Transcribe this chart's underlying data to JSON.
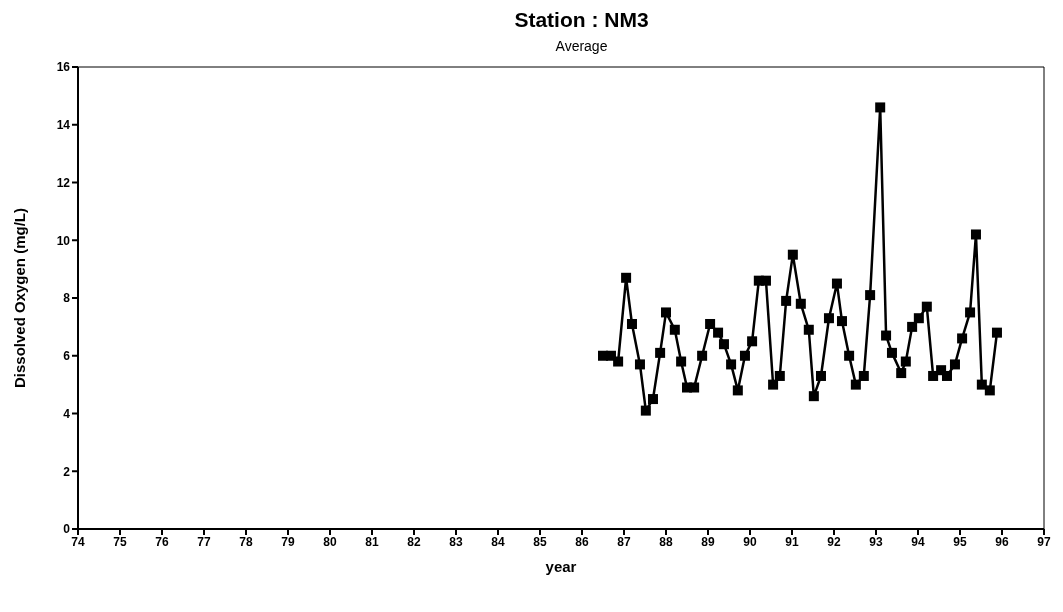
{
  "chart_data": {
    "type": "line",
    "title": "Station : NM3",
    "subtitle": "Average",
    "xlabel": "year",
    "ylabel": "Dissolved Oxygen (mg/L)",
    "x": [
      86.5,
      86.69,
      86.86,
      87.05,
      87.19,
      87.38,
      87.52,
      87.69,
      87.86,
      88.0,
      88.21,
      88.36,
      88.5,
      88.67,
      88.86,
      89.05,
      89.24,
      89.38,
      89.55,
      89.71,
      89.88,
      90.05,
      90.21,
      90.38,
      90.55,
      90.71,
      90.86,
      91.02,
      91.21,
      91.4,
      91.52,
      91.69,
      91.88,
      92.07,
      92.19,
      92.36,
      92.52,
      92.71,
      92.86,
      93.1,
      93.24,
      93.38,
      93.6,
      93.71,
      93.86,
      94.02,
      94.21,
      94.36,
      94.55,
      94.69,
      94.88,
      95.05,
      95.24,
      95.38,
      95.52,
      95.71,
      95.88
    ],
    "series": [
      {
        "color": "#000000",
        "values": [
          6.0,
          6.0,
          5.8,
          8.7,
          7.1,
          5.7,
          4.1,
          4.5,
          6.1,
          7.5,
          6.9,
          5.8,
          4.9,
          4.9,
          6.0,
          7.1,
          6.8,
          6.4,
          5.7,
          4.8,
          6.0,
          6.5,
          8.6,
          8.6,
          5.0,
          5.3,
          7.9,
          9.5,
          7.8,
          6.9,
          4.6,
          5.3,
          7.3,
          8.5,
          7.2,
          6.0,
          5.0,
          5.3,
          8.1,
          14.6,
          6.7,
          6.1,
          5.4,
          5.8,
          7.0,
          7.3,
          7.7,
          5.3,
          5.5,
          5.3,
          5.7,
          6.6,
          7.5,
          10.2,
          5.0,
          4.8,
          6.8
        ]
      }
    ],
    "xlim": [
      74,
      97
    ],
    "xticks": [
      74,
      75,
      76,
      77,
      78,
      79,
      80,
      81,
      82,
      83,
      84,
      85,
      86,
      87,
      88,
      89,
      90,
      91,
      92,
      93,
      94,
      95,
      96,
      97
    ],
    "ylim": [
      0,
      16
    ],
    "yticks": [
      0,
      2,
      4,
      6,
      8,
      10,
      12,
      14,
      16
    ],
    "grid": false,
    "legend": false,
    "marker": "square",
    "line_style": "solid"
  }
}
